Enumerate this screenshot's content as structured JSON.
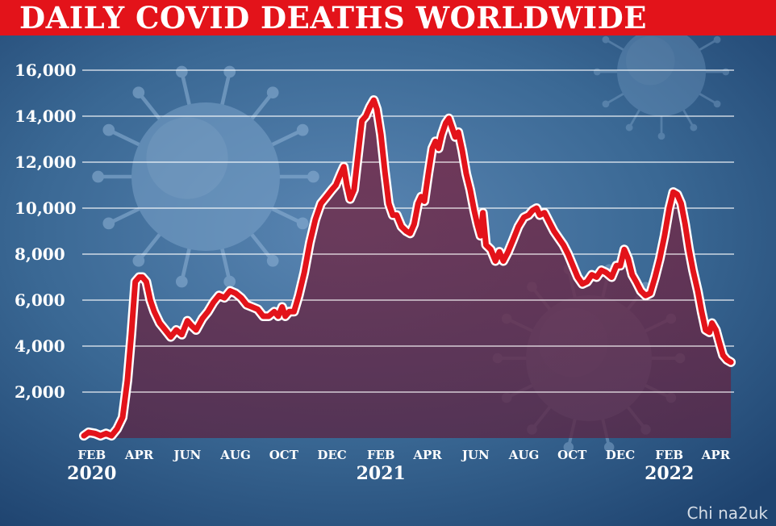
{
  "header": {
    "title": "DAILY COVID DEATHS WORLDWIDE"
  },
  "watermark": "Chi na2uk",
  "colors": {
    "title_bar": "#e3131a",
    "line": "#e3131a",
    "fill": "#6b2a48",
    "background": "#2f5d89",
    "gridline": "#ffffff"
  },
  "chart_data": {
    "type": "area",
    "title": "DAILY COVID DEATHS WORLDWIDE",
    "xlabel": "",
    "ylabel": "",
    "grid": true,
    "legend": "none",
    "ylim": [
      0,
      16000
    ],
    "yticks": [
      2000,
      4000,
      6000,
      8000,
      10000,
      12000,
      14000,
      16000
    ],
    "ytick_labels": [
      "2,000",
      "4,000",
      "6,000",
      "8,000",
      "10,000",
      "12,000",
      "14,000",
      "16,000"
    ],
    "xlim": [
      "2020-01-22",
      "2022-04-24"
    ],
    "xticks": [
      {
        "date": "2020-02-01",
        "label": "FEB"
      },
      {
        "date": "2020-04-01",
        "label": "APR"
      },
      {
        "date": "2020-06-01",
        "label": "JUN"
      },
      {
        "date": "2020-08-01",
        "label": "AUG"
      },
      {
        "date": "2020-10-01",
        "label": "OCT"
      },
      {
        "date": "2020-12-01",
        "label": "DEC"
      },
      {
        "date": "2021-02-01",
        "label": "FEB"
      },
      {
        "date": "2021-04-01",
        "label": "APR"
      },
      {
        "date": "2021-06-01",
        "label": "JUN"
      },
      {
        "date": "2021-08-01",
        "label": "AUG"
      },
      {
        "date": "2021-10-01",
        "label": "OCT"
      },
      {
        "date": "2021-12-01",
        "label": "DEC"
      },
      {
        "date": "2022-02-01",
        "label": "FEB"
      },
      {
        "date": "2022-04-01",
        "label": "APR"
      }
    ],
    "year_labels": [
      {
        "date": "2020-02-01",
        "label": "2020"
      },
      {
        "date": "2021-02-01",
        "label": "2021"
      },
      {
        "date": "2022-02-01",
        "label": "2022"
      }
    ],
    "series": [
      {
        "points": [
          [
            "2020-01-22",
            100
          ],
          [
            "2020-01-28",
            250
          ],
          [
            "2020-02-05",
            200
          ],
          [
            "2020-02-12",
            100
          ],
          [
            "2020-02-19",
            200
          ],
          [
            "2020-02-26",
            100
          ],
          [
            "2020-03-04",
            400
          ],
          [
            "2020-03-11",
            900
          ],
          [
            "2020-03-17",
            2500
          ],
          [
            "2020-03-22",
            4500
          ],
          [
            "2020-03-27",
            6800
          ],
          [
            "2020-04-01",
            7000
          ],
          [
            "2020-04-05",
            7000
          ],
          [
            "2020-04-10",
            6800
          ],
          [
            "2020-04-15",
            6000
          ],
          [
            "2020-04-20",
            5500
          ],
          [
            "2020-04-27",
            5000
          ],
          [
            "2020-05-04",
            4700
          ],
          [
            "2020-05-11",
            4400
          ],
          [
            "2020-05-18",
            4700
          ],
          [
            "2020-05-25",
            4500
          ],
          [
            "2020-06-01",
            5100
          ],
          [
            "2020-06-06",
            4900
          ],
          [
            "2020-06-12",
            4700
          ],
          [
            "2020-06-20",
            5200
          ],
          [
            "2020-06-27",
            5500
          ],
          [
            "2020-07-04",
            5900
          ],
          [
            "2020-07-11",
            6200
          ],
          [
            "2020-07-18",
            6100
          ],
          [
            "2020-07-25",
            6400
          ],
          [
            "2020-08-01",
            6300
          ],
          [
            "2020-08-08",
            6100
          ],
          [
            "2020-08-15",
            5800
          ],
          [
            "2020-08-22",
            5700
          ],
          [
            "2020-08-29",
            5600
          ],
          [
            "2020-09-05",
            5300
          ],
          [
            "2020-09-12",
            5300
          ],
          [
            "2020-09-19",
            5500
          ],
          [
            "2020-09-24",
            5300
          ],
          [
            "2020-09-29",
            5700
          ],
          [
            "2020-10-03",
            5300
          ],
          [
            "2020-10-08",
            5500
          ],
          [
            "2020-10-14",
            5500
          ],
          [
            "2020-10-20",
            6200
          ],
          [
            "2020-10-27",
            7200
          ],
          [
            "2020-11-03",
            8500
          ],
          [
            "2020-11-10",
            9500
          ],
          [
            "2020-11-17",
            10200
          ],
          [
            "2020-11-24",
            10500
          ],
          [
            "2020-12-01",
            10800
          ],
          [
            "2020-12-06",
            11000
          ],
          [
            "2020-12-12",
            11500
          ],
          [
            "2020-12-16",
            11800
          ],
          [
            "2020-12-20",
            11000
          ],
          [
            "2020-12-24",
            10400
          ],
          [
            "2020-12-29",
            10800
          ],
          [
            "2021-01-03",
            12300
          ],
          [
            "2021-01-08",
            13800
          ],
          [
            "2021-01-13",
            14000
          ],
          [
            "2021-01-18",
            14400
          ],
          [
            "2021-01-23",
            14700
          ],
          [
            "2021-01-27",
            14300
          ],
          [
            "2021-02-01",
            13200
          ],
          [
            "2021-02-06",
            11600
          ],
          [
            "2021-02-11",
            10200
          ],
          [
            "2021-02-16",
            9700
          ],
          [
            "2021-02-21",
            9700
          ],
          [
            "2021-02-27",
            9200
          ],
          [
            "2021-03-05",
            9000
          ],
          [
            "2021-03-10",
            8900
          ],
          [
            "2021-03-15",
            9300
          ],
          [
            "2021-03-20",
            10200
          ],
          [
            "2021-03-24",
            10500
          ],
          [
            "2021-03-28",
            10300
          ],
          [
            "2021-04-02",
            11500
          ],
          [
            "2021-04-07",
            12600
          ],
          [
            "2021-04-11",
            12900
          ],
          [
            "2021-04-15",
            12600
          ],
          [
            "2021-04-19",
            13200
          ],
          [
            "2021-04-24",
            13700
          ],
          [
            "2021-04-28",
            13900
          ],
          [
            "2021-05-02",
            13500
          ],
          [
            "2021-05-06",
            13100
          ],
          [
            "2021-05-10",
            13300
          ],
          [
            "2021-05-15",
            12500
          ],
          [
            "2021-05-20",
            11500
          ],
          [
            "2021-05-25",
            10800
          ],
          [
            "2021-05-30",
            9900
          ],
          [
            "2021-06-03",
            9300
          ],
          [
            "2021-06-07",
            8800
          ],
          [
            "2021-06-10",
            9800
          ],
          [
            "2021-06-14",
            8400
          ],
          [
            "2021-06-20",
            8200
          ],
          [
            "2021-06-26",
            7700
          ],
          [
            "2021-07-01",
            8100
          ],
          [
            "2021-07-06",
            7700
          ],
          [
            "2021-07-12",
            8100
          ],
          [
            "2021-07-18",
            8600
          ],
          [
            "2021-07-25",
            9200
          ],
          [
            "2021-08-01",
            9600
          ],
          [
            "2021-08-07",
            9700
          ],
          [
            "2021-08-12",
            9900
          ],
          [
            "2021-08-17",
            10000
          ],
          [
            "2021-08-21",
            9700
          ],
          [
            "2021-08-27",
            9800
          ],
          [
            "2021-09-02",
            9400
          ],
          [
            "2021-09-08",
            9000
          ],
          [
            "2021-09-14",
            8700
          ],
          [
            "2021-09-20",
            8400
          ],
          [
            "2021-09-26",
            8000
          ],
          [
            "2021-10-02",
            7500
          ],
          [
            "2021-10-08",
            7000
          ],
          [
            "2021-10-14",
            6700
          ],
          [
            "2021-10-20",
            6800
          ],
          [
            "2021-10-26",
            7100
          ],
          [
            "2021-11-01",
            7000
          ],
          [
            "2021-11-07",
            7300
          ],
          [
            "2021-11-13",
            7200
          ],
          [
            "2021-11-20",
            7000
          ],
          [
            "2021-11-26",
            7500
          ],
          [
            "2021-12-01",
            7500
          ],
          [
            "2021-12-06",
            8200
          ],
          [
            "2021-12-11",
            7800
          ],
          [
            "2021-12-16",
            7100
          ],
          [
            "2021-12-21",
            6800
          ],
          [
            "2021-12-27",
            6400
          ],
          [
            "2022-01-02",
            6200
          ],
          [
            "2022-01-08",
            6300
          ],
          [
            "2022-01-14",
            7000
          ],
          [
            "2022-01-20",
            7800
          ],
          [
            "2022-01-26",
            8800
          ],
          [
            "2022-02-01",
            10000
          ],
          [
            "2022-02-06",
            10700
          ],
          [
            "2022-02-11",
            10600
          ],
          [
            "2022-02-16",
            10200
          ],
          [
            "2022-02-21",
            9300
          ],
          [
            "2022-02-26",
            8200
          ],
          [
            "2022-03-03",
            7300
          ],
          [
            "2022-03-09",
            6400
          ],
          [
            "2022-03-14",
            5500
          ],
          [
            "2022-03-19",
            4700
          ],
          [
            "2022-03-24",
            4600
          ],
          [
            "2022-03-27",
            5000
          ],
          [
            "2022-04-01",
            4700
          ],
          [
            "2022-04-05",
            4200
          ],
          [
            "2022-04-10",
            3600
          ],
          [
            "2022-04-15",
            3400
          ],
          [
            "2022-04-20",
            3300
          ]
        ]
      }
    ]
  }
}
